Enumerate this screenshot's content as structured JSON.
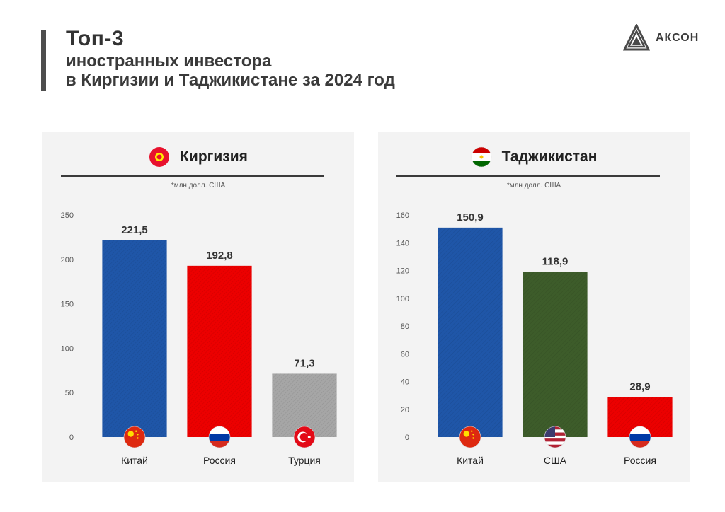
{
  "header": {
    "title": "Топ-3",
    "subtitle_line1": "иностранных инвестора",
    "subtitle_line2": "в Киргизии и Таджикистане за 2024 год"
  },
  "logo": {
    "text": "АКСОН"
  },
  "chart_data": [
    {
      "type": "bar",
      "title": "Киргизия",
      "note": "*млн долл. США",
      "flag_icon": "kyrgyzstan-flag-icon",
      "categories": [
        "Китай",
        "Россия",
        "Турция"
      ],
      "values": [
        221.5,
        192.8,
        71.3
      ],
      "value_labels": [
        "221,5",
        "192,8",
        "71,3"
      ],
      "category_flags": [
        "china-flag-icon",
        "russia-flag-icon",
        "turkey-flag-icon"
      ],
      "colors": [
        "#1f56a8",
        "#ec0000",
        "#a6a6a6"
      ],
      "ylim": [
        0,
        250
      ],
      "yticks": [
        0,
        50,
        100,
        150,
        200,
        250
      ],
      "grid": false
    },
    {
      "type": "bar",
      "title": "Таджикистан",
      "note": "*млн долл. США",
      "flag_icon": "tajikistan-flag-icon",
      "categories": [
        "Китай",
        "США",
        "Россия"
      ],
      "values": [
        150.9,
        118.9,
        28.9
      ],
      "value_labels": [
        "150,9",
        "118,9",
        "28,9"
      ],
      "category_flags": [
        "china-flag-icon",
        "usa-flag-icon",
        "russia-flag-icon"
      ],
      "colors": [
        "#1f56a8",
        "#3d5c2a",
        "#ec0000"
      ],
      "ylim": [
        0,
        160
      ],
      "yticks": [
        0,
        20,
        40,
        60,
        80,
        100,
        120,
        140,
        160
      ],
      "grid": false
    }
  ]
}
